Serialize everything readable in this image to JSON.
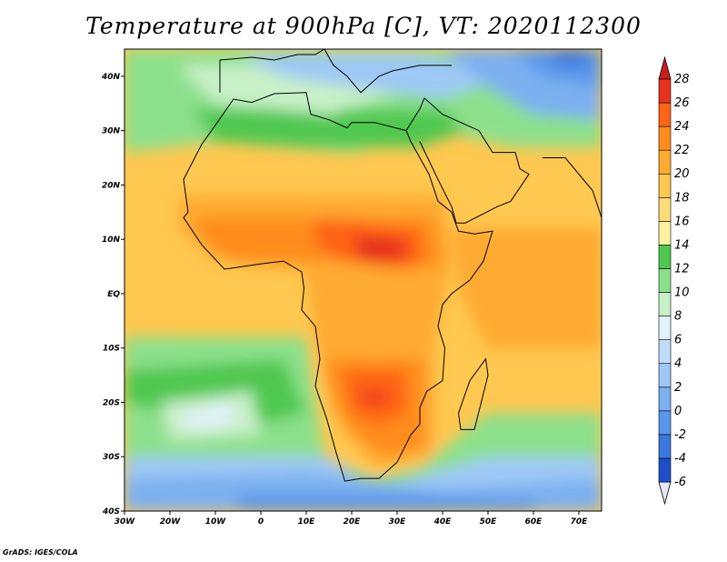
{
  "title": "Temperature at 900hPa [C], VT: 2020112300",
  "credit": "GrADS: IGES/COLA",
  "map": {
    "lon_range": [
      -30,
      75
    ],
    "lat_range": [
      -40,
      45
    ],
    "x_ticks": [
      "30W",
      "20W",
      "10W",
      "0",
      "10E",
      "20E",
      "30E",
      "40E",
      "50E",
      "60E",
      "70E"
    ],
    "y_ticks": [
      "40S",
      "30S",
      "20S",
      "10S",
      "EQ",
      "10N",
      "20N",
      "30N",
      "40N"
    ]
  },
  "colorbar": {
    "labels": [
      "-6",
      "-4",
      "-2",
      "0",
      "2",
      "4",
      "6",
      "8",
      "10",
      "12",
      "14",
      "16",
      "18",
      "20",
      "22",
      "24",
      "26",
      "28"
    ],
    "colors": [
      "#1a1a8c",
      "#1e4fc8",
      "#3c78e0",
      "#5a96eb",
      "#7bb0f0",
      "#9ec8f5",
      "#c0dcf8",
      "#e2f2fb",
      "#c8f0c8",
      "#8ce08c",
      "#50c850",
      "#fff0a0",
      "#ffdc78",
      "#ffc850",
      "#ffaa30",
      "#ff8c1e",
      "#ff6414",
      "#e8321e",
      "#c81e1e"
    ]
  }
}
